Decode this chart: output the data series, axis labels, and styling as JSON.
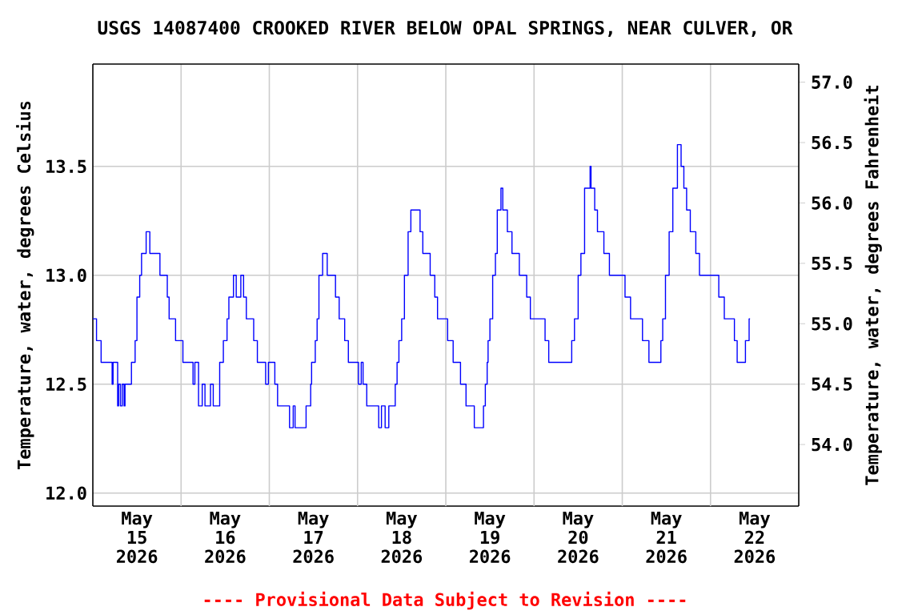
{
  "chart_data": {
    "type": "step",
    "title": "USGS 14087400 CROOKED RIVER BELOW OPAL SPRINGS, NEAR CULVER, OR",
    "ylabel": "Temperature, water, degrees Celsius",
    "y2label": "Temperature, water, degrees Fahrenheit",
    "color": "#0000ff",
    "x": [
      "2026-05-15T00:00",
      "2026-05-15T01:00",
      "2026-05-15T02:15",
      "2026-05-15T05:15",
      "2026-05-15T05:30",
      "2026-05-15T06:45",
      "2026-05-15T07:00",
      "2026-05-15T07:30",
      "2026-05-15T08:00",
      "2026-05-15T08:30",
      "2026-05-15T08:45",
      "2026-05-15T10:30",
      "2026-05-15T11:30",
      "2026-05-15T12:00",
      "2026-05-15T12:45",
      "2026-05-15T13:15",
      "2026-05-15T14:30",
      "2026-05-15T15:30",
      "2026-05-15T18:15",
      "2026-05-15T20:15",
      "2026-05-15T20:45",
      "2026-05-15T22:30",
      "2026-05-16T00:30",
      "2026-05-16T03:15",
      "2026-05-16T03:45",
      "2026-05-16T04:45",
      "2026-05-16T05:45",
      "2026-05-16T06:30",
      "2026-05-16T08:00",
      "2026-05-16T08:45",
      "2026-05-16T10:30",
      "2026-05-16T11:30",
      "2026-05-16T12:30",
      "2026-05-16T13:00",
      "2026-05-16T14:15",
      "2026-05-16T15:00",
      "2026-05-16T16:15",
      "2026-05-16T17:00",
      "2026-05-16T17:45",
      "2026-05-16T19:45",
      "2026-05-16T20:45",
      "2026-05-16T23:00",
      "2026-05-16T23:45",
      "2026-05-17T01:30",
      "2026-05-17T02:15",
      "2026-05-17T05:30",
      "2026-05-17T06:30",
      "2026-05-17T07:00",
      "2026-05-17T10:00",
      "2026-05-17T11:15",
      "2026-05-17T11:30",
      "2026-05-17T12:30",
      "2026-05-17T13:00",
      "2026-05-17T13:30",
      "2026-05-17T14:30",
      "2026-05-17T15:45",
      "2026-05-17T18:00",
      "2026-05-17T19:00",
      "2026-05-17T20:30",
      "2026-05-17T21:30",
      "2026-05-18T00:15",
      "2026-05-18T01:00",
      "2026-05-18T01:30",
      "2026-05-18T02:30",
      "2026-05-18T05:45",
      "2026-05-18T06:30",
      "2026-05-18T07:30",
      "2026-05-18T08:30",
      "2026-05-18T10:15",
      "2026-05-18T10:45",
      "2026-05-18T11:15",
      "2026-05-18T12:00",
      "2026-05-18T12:45",
      "2026-05-18T13:45",
      "2026-05-18T14:30",
      "2026-05-18T17:00",
      "2026-05-18T17:45",
      "2026-05-18T19:45",
      "2026-05-18T21:00",
      "2026-05-18T21:45",
      "2026-05-19T00:30",
      "2026-05-19T02:00",
      "2026-05-19T04:00",
      "2026-05-19T05:30",
      "2026-05-19T07:45",
      "2026-05-19T10:15",
      "2026-05-19T10:45",
      "2026-05-19T11:15",
      "2026-05-19T11:30",
      "2026-05-19T12:00",
      "2026-05-19T12:45",
      "2026-05-19T13:30",
      "2026-05-19T14:00",
      "2026-05-19T15:00",
      "2026-05-19T15:30",
      "2026-05-19T16:45",
      "2026-05-19T18:00",
      "2026-05-19T20:00",
      "2026-05-19T22:00",
      "2026-05-19T23:00",
      "2026-05-20T03:00",
      "2026-05-20T04:00",
      "2026-05-20T10:15",
      "2026-05-20T11:00",
      "2026-05-20T12:00",
      "2026-05-20T12:45",
      "2026-05-20T13:45",
      "2026-05-20T15:15",
      "2026-05-20T15:30",
      "2026-05-20T16:30",
      "2026-05-20T17:15",
      "2026-05-20T19:00",
      "2026-05-20T20:30",
      "2026-05-21T00:45",
      "2026-05-21T02:15",
      "2026-05-21T05:30",
      "2026-05-21T07:15",
      "2026-05-21T10:30",
      "2026-05-21T11:00",
      "2026-05-21T11:45",
      "2026-05-21T12:45",
      "2026-05-21T13:45",
      "2026-05-21T15:00",
      "2026-05-21T16:00",
      "2026-05-21T16:45",
      "2026-05-21T17:30",
      "2026-05-21T18:30",
      "2026-05-21T20:00",
      "2026-05-21T21:00",
      "2026-05-22T02:15",
      "2026-05-22T03:45",
      "2026-05-22T06:30",
      "2026-05-22T07:15",
      "2026-05-22T09:30",
      "2026-05-22T10:30",
      "2026-05-22T10:45"
    ],
    "values": [
      12.8,
      12.7,
      12.6,
      12.5,
      12.6,
      12.4,
      12.5,
      12.4,
      12.5,
      12.4,
      12.5,
      12.6,
      12.7,
      12.9,
      13.0,
      13.1,
      13.2,
      13.1,
      13.0,
      12.9,
      12.8,
      12.7,
      12.6,
      12.5,
      12.6,
      12.4,
      12.5,
      12.4,
      12.5,
      12.4,
      12.6,
      12.7,
      12.8,
      12.9,
      13.0,
      12.9,
      13.0,
      12.9,
      12.8,
      12.7,
      12.6,
      12.5,
      12.6,
      12.5,
      12.4,
      12.3,
      12.4,
      12.3,
      12.4,
      12.5,
      12.6,
      12.7,
      12.8,
      13.0,
      13.1,
      13.0,
      12.9,
      12.8,
      12.7,
      12.6,
      12.5,
      12.6,
      12.5,
      12.4,
      12.3,
      12.4,
      12.3,
      12.4,
      12.5,
      12.6,
      12.7,
      12.8,
      13.0,
      13.2,
      13.3,
      13.2,
      13.1,
      13.0,
      12.9,
      12.8,
      12.7,
      12.6,
      12.5,
      12.4,
      12.3,
      12.4,
      12.5,
      12.6,
      12.7,
      12.8,
      13.0,
      13.1,
      13.3,
      13.4,
      13.3,
      13.2,
      13.1,
      13.0,
      12.9,
      12.8,
      12.7,
      12.6,
      12.7,
      12.8,
      13.0,
      13.1,
      13.4,
      13.5,
      13.4,
      13.3,
      13.2,
      13.1,
      13.0,
      12.9,
      12.8,
      12.7,
      12.6,
      12.7,
      12.8,
      13.0,
      13.2,
      13.4,
      13.6,
      13.5,
      13.4,
      13.3,
      13.2,
      13.1,
      13.0,
      12.9,
      12.8,
      12.7,
      12.6,
      12.7,
      12.8,
      12.8
    ],
    "xlim": [
      "2026-05-15T00:00",
      "2026-05-23T00:00"
    ],
    "xticks": [
      {
        "value": "2026-05-15T12:00",
        "label": "May 15 2026"
      },
      {
        "value": "2026-05-16T00:00",
        "label": null
      },
      {
        "value": "2026-05-16T12:00",
        "label": "May 16 2026"
      },
      {
        "value": "2026-05-17T00:00",
        "label": null
      },
      {
        "value": "2026-05-17T12:00",
        "label": "May 17 2026"
      },
      {
        "value": "2026-05-18T00:00",
        "label": null
      },
      {
        "value": "2026-05-18T12:00",
        "label": "May 18 2026"
      },
      {
        "value": "2026-05-19T00:00",
        "label": null
      },
      {
        "value": "2026-05-19T12:00",
        "label": "May 19 2026"
      },
      {
        "value": "2026-05-20T00:00",
        "label": null
      },
      {
        "value": "2026-05-20T12:00",
        "label": "May 20 2026"
      },
      {
        "value": "2026-05-21T00:00",
        "label": null
      },
      {
        "value": "2026-05-21T12:00",
        "label": "May 21 2026"
      },
      {
        "value": "2026-05-22T00:00",
        "label": null
      },
      {
        "value": "2026-05-22T12:00",
        "label": "May 22 2026"
      }
    ],
    "ylim": [
      11.94,
      13.97
    ],
    "yticks": [
      {
        "value": 12,
        "label": "12.0"
      },
      12.5,
      {
        "value": 13,
        "label": "13.0"
      },
      13.5
    ],
    "y2lim": [
      53.49,
      57.15
    ],
    "y2ticks": [
      {
        "value": 54,
        "label": "54.0"
      },
      54.5,
      {
        "value": 55,
        "label": "55.0"
      },
      55.5,
      {
        "value": 56,
        "label": "56.0"
      },
      56.5,
      {
        "value": 57,
        "label": "57.0"
      }
    ],
    "grid": true,
    "annotations": [
      "---- Provisional Data Subject to Revision ----"
    ]
  }
}
